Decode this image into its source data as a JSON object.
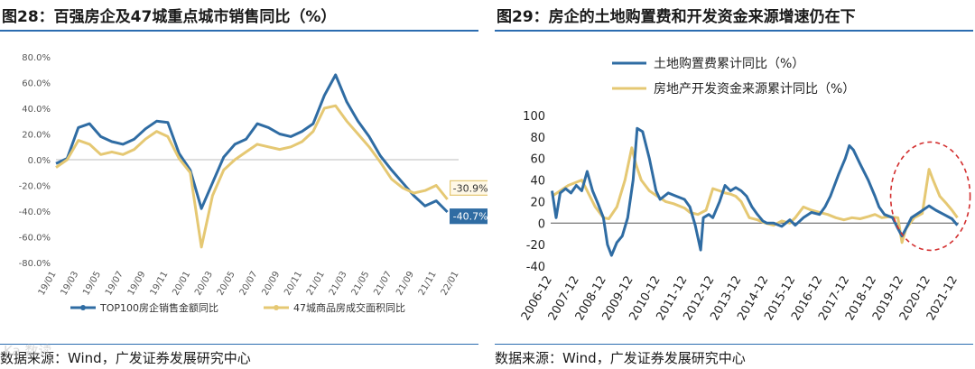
{
  "left": {
    "fig_title": "图28：百强房企及47城重点城市销售同比（%）",
    "source": "数据来源：Wind，广发证券发展研究中心",
    "colors": {
      "rule": "#2b6cb0"
    },
    "chart_data": {
      "type": "line",
      "title": "",
      "x": [
        "19/01",
        "19/02",
        "19/03",
        "19/04",
        "19/05",
        "19/06",
        "19/07",
        "19/08",
        "19/09",
        "19/10",
        "19/11",
        "19/12",
        "20/01",
        "20/02",
        "20/03",
        "20/04",
        "20/05",
        "20/06",
        "20/07",
        "20/08",
        "20/09",
        "20/10",
        "20/11",
        "20/12",
        "21/01",
        "21/02",
        "21/03",
        "21/04",
        "21/05",
        "21/06",
        "21/07",
        "21/08",
        "21/09",
        "21/10",
        "21/11",
        "21/12",
        "22/01"
      ],
      "x_tick_labels": [
        "19/01",
        "19/03",
        "19/05",
        "19/07",
        "19/09",
        "19/11",
        "20/01",
        "20/03",
        "20/05",
        "20/07",
        "20/09",
        "20/11",
        "21/01",
        "21/03",
        "21/05",
        "21/07",
        "21/09",
        "21/11",
        "22/01"
      ],
      "ylim": [
        -80,
        80
      ],
      "yticks": [
        -80,
        -60,
        -40,
        -20,
        0,
        20,
        40,
        60,
        80
      ],
      "ytick_labels": [
        "-80.0%",
        "-60.0%",
        "-40.0%",
        "-20.0%",
        "0.0%",
        "20.0%",
        "40.0%",
        "60.0%",
        "80.0%"
      ],
      "series": [
        {
          "name": "TOP100房企销售金额同比",
          "color": "#2f6ca3",
          "values": [
            -3,
            1,
            25,
            28,
            18,
            14,
            12,
            16,
            24,
            30,
            29,
            5,
            -8,
            -38,
            -18,
            2,
            12,
            16,
            28,
            25,
            20,
            18,
            22,
            28,
            50,
            66,
            45,
            30,
            18,
            3,
            -8,
            -18,
            -28,
            -36,
            -32,
            -40.7,
            null
          ]
        },
        {
          "name": "47城商品房成交面积同比",
          "color": "#e5c873",
          "values": [
            -6,
            0,
            15,
            12,
            4,
            6,
            4,
            8,
            16,
            22,
            18,
            1,
            -10,
            -68,
            -28,
            -8,
            0,
            6,
            12,
            10,
            8,
            10,
            14,
            22,
            40,
            42,
            30,
            20,
            10,
            -2,
            -15,
            -22,
            -26,
            -24,
            -20,
            -30.9,
            null
          ]
        }
      ],
      "annotations": [
        {
          "text": "-30.9%",
          "series": 1,
          "value": -30.9
        },
        {
          "text": "-40.7%",
          "series": 0,
          "value": -40.7
        }
      ],
      "legend": "bottom"
    }
  },
  "right": {
    "fig_title": "图29：房企的土地购置费和开发资金来源增速仍在下",
    "source": "数据来源：Wind，广发证券发展研究中心",
    "colors": {
      "rule": "#2b6cb0"
    },
    "chart_data": {
      "type": "line",
      "title": "",
      "x_tick_labels": [
        "2006-12",
        "2007-12",
        "2008-12",
        "2009-12",
        "2010-12",
        "2011-12",
        "2012-12",
        "2013-12",
        "2014-12",
        "2015-12",
        "2016-12",
        "2017-12",
        "2018-12",
        "2019-12",
        "2020-12",
        "2021-12"
      ],
      "xlim": [
        2006.95,
        2022.05
      ],
      "ylim": [
        -40,
        100
      ],
      "yticks": [
        -40,
        -20,
        0,
        20,
        40,
        60,
        80,
        100
      ],
      "series": [
        {
          "name": "土地购置费累计同比（%）",
          "color": "#2f6ca3",
          "points": [
            [
              2007.0,
              30
            ],
            [
              2007.15,
              5
            ],
            [
              2007.3,
              28
            ],
            [
              2007.5,
              32
            ],
            [
              2007.7,
              28
            ],
            [
              2007.9,
              35
            ],
            [
              2008.1,
              30
            ],
            [
              2008.3,
              48
            ],
            [
              2008.5,
              30
            ],
            [
              2008.7,
              18
            ],
            [
              2008.9,
              5
            ],
            [
              2009.05,
              -20
            ],
            [
              2009.2,
              -30
            ],
            [
              2009.4,
              -18
            ],
            [
              2009.6,
              -12
            ],
            [
              2009.8,
              5
            ],
            [
              2010.0,
              40
            ],
            [
              2010.15,
              88
            ],
            [
              2010.35,
              85
            ],
            [
              2010.6,
              60
            ],
            [
              2010.85,
              30
            ],
            [
              2011.0,
              22
            ],
            [
              2011.3,
              28
            ],
            [
              2011.6,
              25
            ],
            [
              2011.9,
              22
            ],
            [
              2012.1,
              15
            ],
            [
              2012.3,
              -2
            ],
            [
              2012.5,
              -25
            ],
            [
              2012.6,
              5
            ],
            [
              2012.8,
              8
            ],
            [
              2012.95,
              5
            ],
            [
              2013.2,
              20
            ],
            [
              2013.4,
              35
            ],
            [
              2013.6,
              30
            ],
            [
              2013.8,
              33
            ],
            [
              2014.0,
              30
            ],
            [
              2014.2,
              25
            ],
            [
              2014.4,
              15
            ],
            [
              2014.6,
              8
            ],
            [
              2014.8,
              2
            ],
            [
              2014.95,
              0
            ],
            [
              2015.2,
              0
            ],
            [
              2015.5,
              -3
            ],
            [
              2015.8,
              3
            ],
            [
              2016.0,
              -2
            ],
            [
              2016.3,
              5
            ],
            [
              2016.6,
              10
            ],
            [
              2016.9,
              8
            ],
            [
              2017.1,
              15
            ],
            [
              2017.3,
              25
            ],
            [
              2017.6,
              45
            ],
            [
              2017.85,
              60
            ],
            [
              2018.0,
              72
            ],
            [
              2018.15,
              68
            ],
            [
              2018.4,
              55
            ],
            [
              2018.7,
              40
            ],
            [
              2018.95,
              25
            ],
            [
              2019.1,
              15
            ],
            [
              2019.3,
              8
            ],
            [
              2019.6,
              5
            ],
            [
              2019.8,
              -5
            ],
            [
              2019.95,
              -12
            ],
            [
              2020.1,
              -5
            ],
            [
              2020.3,
              5
            ],
            [
              2020.6,
              10
            ],
            [
              2020.95,
              16
            ],
            [
              2021.2,
              12
            ],
            [
              2021.5,
              8
            ],
            [
              2021.8,
              4
            ],
            [
              2022.0,
              -2
            ]
          ]
        },
        {
          "name": "房地产开发资金来源累计同比（%）",
          "color": "#e5c873",
          "points": [
            [
              2007.0,
              25
            ],
            [
              2007.3,
              30
            ],
            [
              2007.6,
              35
            ],
            [
              2007.9,
              38
            ],
            [
              2008.1,
              40
            ],
            [
              2008.3,
              30
            ],
            [
              2008.6,
              15
            ],
            [
              2008.9,
              5
            ],
            [
              2009.1,
              4
            ],
            [
              2009.4,
              15
            ],
            [
              2009.7,
              40
            ],
            [
              2009.95,
              70
            ],
            [
              2010.1,
              55
            ],
            [
              2010.3,
              40
            ],
            [
              2010.6,
              30
            ],
            [
              2010.9,
              25
            ],
            [
              2011.2,
              20
            ],
            [
              2011.5,
              18
            ],
            [
              2011.9,
              14
            ],
            [
              2012.1,
              10
            ],
            [
              2012.4,
              8
            ],
            [
              2012.7,
              12
            ],
            [
              2012.95,
              32
            ],
            [
              2013.2,
              30
            ],
            [
              2013.4,
              28
            ],
            [
              2013.6,
              27
            ],
            [
              2013.8,
              25
            ],
            [
              2014.0,
              20
            ],
            [
              2014.3,
              5
            ],
            [
              2014.6,
              3
            ],
            [
              2014.9,
              0
            ],
            [
              2015.2,
              -2
            ],
            [
              2015.5,
              2
            ],
            [
              2015.8,
              0
            ],
            [
              2016.0,
              5
            ],
            [
              2016.3,
              15
            ],
            [
              2016.6,
              12
            ],
            [
              2016.9,
              10
            ],
            [
              2017.2,
              8
            ],
            [
              2017.5,
              5
            ],
            [
              2017.8,
              3
            ],
            [
              2018.1,
              5
            ],
            [
              2018.4,
              4
            ],
            [
              2018.7,
              6
            ],
            [
              2018.95,
              8
            ],
            [
              2019.2,
              5
            ],
            [
              2019.5,
              6
            ],
            [
              2019.8,
              5
            ],
            [
              2019.95,
              -18
            ],
            [
              2020.1,
              -5
            ],
            [
              2020.4,
              5
            ],
            [
              2020.7,
              9
            ],
            [
              2020.95,
              50
            ],
            [
              2021.1,
              40
            ],
            [
              2021.35,
              25
            ],
            [
              2021.6,
              18
            ],
            [
              2021.8,
              12
            ],
            [
              2022.0,
              5
            ]
          ]
        }
      ],
      "legend": "top-left",
      "highlight": "dashed red ellipse around 2020-12 to 2021-12"
    }
  },
  "watermark": "Ka 数读"
}
